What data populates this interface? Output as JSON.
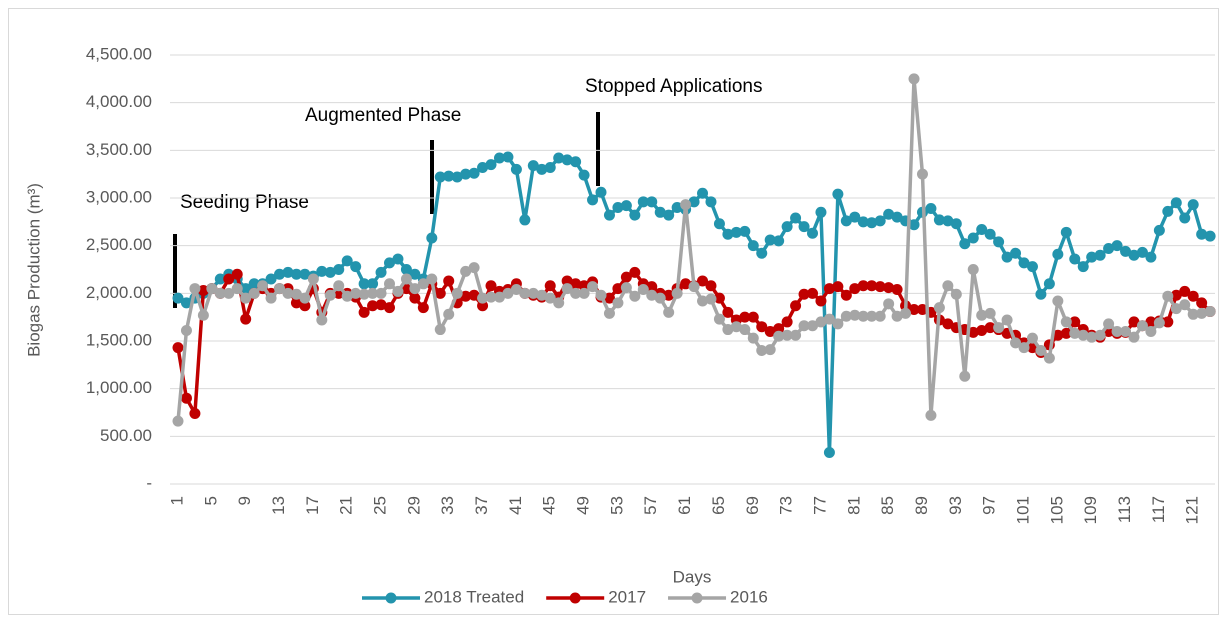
{
  "chart_data": {
    "type": "line",
    "x_label": "Days",
    "y_label": "Biogas Production (m³)",
    "annotations": [
      "Seeding Phase",
      "Augmented Phase",
      "Stopped Applications"
    ],
    "categories": [
      1,
      null,
      null,
      null,
      5,
      null,
      null,
      null,
      9,
      null,
      null,
      null,
      13,
      null,
      null,
      null,
      17,
      null,
      null,
      null,
      21,
      null,
      null,
      null,
      25,
      null,
      null,
      null,
      29,
      null,
      null,
      null,
      33,
      null,
      null,
      null,
      37,
      null,
      null,
      null,
      41,
      null,
      null,
      null,
      45,
      null,
      null,
      null,
      49,
      null,
      null,
      null,
      53,
      null,
      null,
      null,
      57,
      null,
      null,
      null,
      61,
      null,
      null,
      null,
      65,
      null,
      null,
      null,
      69,
      null,
      null,
      null,
      73,
      null,
      null,
      null,
      77,
      null,
      null,
      null,
      81,
      null,
      null,
      null,
      85,
      null,
      null,
      null,
      89,
      null,
      null,
      null,
      93,
      null,
      null,
      null,
      97,
      null,
      null,
      null,
      101,
      null,
      null,
      null,
      105,
      null,
      null,
      null,
      109,
      null,
      null,
      null,
      113,
      null,
      null,
      null,
      117,
      null,
      null,
      null,
      121,
      null,
      null
    ],
    "series": [
      {
        "name": "2018 Treated",
        "color": "#2394ad",
        "values": [
          1950,
          1900,
          1950,
          2000,
          2050,
          2150,
          2200,
          2150,
          2050,
          2100,
          2100,
          2150,
          2200,
          2220,
          2200,
          2200,
          2180,
          2230,
          2220,
          2250,
          2340,
          2280,
          2100,
          2100,
          2220,
          2320,
          2360,
          2250,
          2200,
          2150,
          2580,
          3220,
          3230,
          3220,
          3250,
          3260,
          3320,
          3350,
          3420,
          3430,
          3300,
          2770,
          3340,
          3300,
          3320,
          3420,
          3400,
          3380,
          3240,
          2980,
          3060,
          2820,
          2900,
          2920,
          2820,
          2960,
          2960,
          2850,
          2820,
          2900,
          2880,
          2960,
          3050,
          2960,
          2730,
          2620,
          2640,
          2650,
          2500,
          2420,
          2560,
          2550,
          2700,
          2790,
          2700,
          2630,
          2850,
          330,
          3040,
          2760,
          2800,
          2750,
          2740,
          2760,
          2830,
          2800,
          2760,
          2720,
          2850,
          2890,
          2770,
          2760,
          2730,
          2520,
          2580,
          2670,
          2620,
          2540,
          2380,
          2420,
          2320,
          2280,
          1990,
          2100,
          2410,
          2640,
          2360,
          2280,
          2380,
          2400,
          2470,
          2500,
          2440,
          2400,
          2430,
          2380,
          2660,
          2860,
          2950,
          2790,
          2930,
          2620,
          2600
        ]
      },
      {
        "name": "2017",
        "color": "#c00000",
        "values": [
          1430,
          900,
          740,
          2030,
          2050,
          2000,
          2150,
          2200,
          1730,
          2000,
          2050,
          2000,
          2050,
          2050,
          1900,
          1870,
          2050,
          1800,
          2000,
          2000,
          2000,
          1960,
          1800,
          1870,
          1880,
          1850,
          2000,
          2050,
          1950,
          1850,
          2100,
          2000,
          2130,
          1900,
          1970,
          1980,
          1870,
          2080,
          2020,
          2040,
          2100,
          2000,
          1980,
          1960,
          2080,
          1960,
          2130,
          2100,
          2080,
          2120,
          1960,
          1950,
          2050,
          2170,
          2220,
          2100,
          2070,
          2000,
          1980,
          2050,
          2100,
          2080,
          2130,
          2080,
          1950,
          1800,
          1720,
          1750,
          1750,
          1650,
          1600,
          1630,
          1700,
          1870,
          1990,
          2000,
          1920,
          2050,
          2070,
          1980,
          2050,
          2080,
          2080,
          2070,
          2060,
          2040,
          1870,
          1830,
          1830,
          1800,
          1720,
          1680,
          1640,
          1620,
          1590,
          1610,
          1640,
          1620,
          1580,
          1560,
          1480,
          1430,
          1380,
          1460,
          1560,
          1580,
          1700,
          1620,
          1560,
          1540,
          1600,
          1580,
          1590,
          1700,
          1660,
          1700,
          1710,
          1700,
          1980,
          2020,
          1970,
          1900,
          1810
        ]
      },
      {
        "name": "2016",
        "color": "#a5a5a5",
        "values": [
          660,
          1610,
          2050,
          1770,
          2050,
          2000,
          2000,
          2050,
          1950,
          2000,
          2080,
          1950,
          2050,
          2000,
          1990,
          1950,
          2150,
          1720,
          1980,
          2080,
          1970,
          2000,
          1990,
          2000,
          2000,
          2100,
          2020,
          2150,
          2050,
          2100,
          2150,
          1620,
          1780,
          2000,
          2230,
          2270,
          1950,
          1960,
          1960,
          2000,
          2040,
          2000,
          2000,
          1980,
          1950,
          1900,
          2050,
          2000,
          2000,
          2070,
          1980,
          1790,
          1900,
          2060,
          1970,
          2040,
          1980,
          1950,
          1800,
          2000,
          2930,
          2070,
          1920,
          1940,
          1730,
          1620,
          1650,
          1620,
          1530,
          1400,
          1410,
          1550,
          1560,
          1560,
          1660,
          1660,
          1700,
          1730,
          1680,
          1760,
          1770,
          1760,
          1760,
          1760,
          1890,
          1760,
          1790,
          4250,
          3250,
          720,
          1850,
          2080,
          1990,
          1130,
          2250,
          1770,
          1790,
          1640,
          1720,
          1480,
          1430,
          1530,
          1400,
          1320,
          1920,
          1700,
          1580,
          1560,
          1540,
          1560,
          1680,
          1600,
          1600,
          1540,
          1660,
          1600,
          1690,
          1970,
          1840,
          1880,
          1780,
          1790,
          1810
        ]
      }
    ],
    "ylim": [
      0,
      4500
    ],
    "yticks": [
      {
        "value": 0,
        "label": "-"
      },
      {
        "value": 500,
        "label": "500.00"
      },
      {
        "value": 1000,
        "label": "1,000.00"
      },
      {
        "value": 1500,
        "label": "1,500.00"
      },
      {
        "value": 2000,
        "label": "2,000.00"
      },
      {
        "value": 2500,
        "label": "2,500.00"
      },
      {
        "value": 3000,
        "label": "3,000.00"
      },
      {
        "value": 3500,
        "label": "3,500.00"
      },
      {
        "value": 4000,
        "label": "4,000.00"
      },
      {
        "value": 4500,
        "label": "4,500.00"
      }
    ],
    "grid": true,
    "legend": "bottom"
  }
}
